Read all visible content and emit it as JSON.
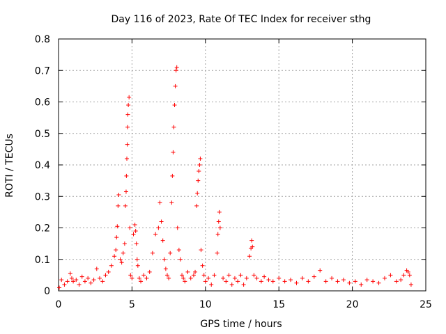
{
  "chart_data": {
    "type": "scatter",
    "title": "Day 116 of 2023, Rate Of TEC Index for receiver sthg",
    "xlabel": "GPS time / hours",
    "ylabel": "ROTI / TECUs",
    "xlim": [
      0,
      25
    ],
    "ylim": [
      0,
      0.8
    ],
    "xticks": [
      "0",
      "5",
      "10",
      "15",
      "20",
      "25"
    ],
    "yticks": [
      "0",
      "0.1",
      "0.2",
      "0.3",
      "0.4",
      "0.5",
      "0.6",
      "0.7",
      "0.8"
    ],
    "grid": true,
    "marker": "+",
    "color": "#ff0000",
    "series": [
      {
        "x": [
          0.05,
          0.2,
          0.4,
          0.6,
          0.8,
          0.9,
          1.0,
          1.2,
          1.4,
          1.6,
          1.8,
          2.0,
          2.2,
          2.4,
          2.6,
          2.8,
          3.0,
          3.2,
          3.4,
          3.6,
          3.8,
          3.9,
          3.95,
          4.0,
          4.05,
          4.1,
          4.2,
          4.3,
          4.4,
          4.5,
          4.55,
          4.6,
          4.62,
          4.65,
          4.68,
          4.7,
          4.72,
          4.75,
          4.8,
          4.85,
          4.9,
          5.0,
          5.1,
          5.2,
          5.25,
          5.3,
          5.35,
          5.4,
          5.5,
          5.6,
          5.8,
          6.0,
          6.2,
          6.4,
          6.6,
          6.8,
          6.9,
          7.0,
          7.1,
          7.2,
          7.3,
          7.4,
          7.5,
          7.6,
          7.7,
          7.75,
          7.8,
          7.85,
          7.9,
          7.95,
          8.0,
          8.05,
          8.1,
          8.2,
          8.3,
          8.4,
          8.5,
          8.6,
          8.8,
          9.0,
          9.2,
          9.3,
          9.4,
          9.45,
          9.5,
          9.55,
          9.6,
          9.65,
          9.7,
          9.8,
          9.9,
          10.0,
          10.2,
          10.4,
          10.6,
          10.8,
          10.85,
          10.9,
          10.95,
          11.0,
          11.2,
          11.4,
          11.6,
          11.8,
          12.0,
          12.2,
          12.4,
          12.6,
          12.8,
          13.0,
          13.1,
          13.15,
          13.2,
          13.3,
          13.5,
          13.8,
          14.0,
          14.3,
          14.6,
          15.0,
          15.4,
          15.8,
          16.2,
          16.6,
          17.0,
          17.4,
          17.8,
          18.2,
          18.6,
          19.0,
          19.4,
          19.8,
          20.2,
          20.6,
          21.0,
          21.4,
          21.8,
          22.2,
          22.6,
          23.0,
          23.3,
          23.5,
          23.7,
          23.8,
          23.9,
          24.0
        ],
        "y": [
          0.01,
          0.035,
          0.02,
          0.03,
          0.055,
          0.04,
          0.03,
          0.035,
          0.02,
          0.045,
          0.03,
          0.04,
          0.025,
          0.035,
          0.07,
          0.04,
          0.03,
          0.05,
          0.06,
          0.08,
          0.11,
          0.13,
          0.17,
          0.205,
          0.27,
          0.305,
          0.1,
          0.09,
          0.12,
          0.15,
          0.27,
          0.315,
          0.365,
          0.42,
          0.465,
          0.52,
          0.56,
          0.59,
          0.615,
          0.2,
          0.05,
          0.04,
          0.18,
          0.21,
          0.19,
          0.15,
          0.1,
          0.08,
          0.04,
          0.03,
          0.05,
          0.04,
          0.06,
          0.12,
          0.18,
          0.2,
          0.28,
          0.22,
          0.16,
          0.1,
          0.07,
          0.05,
          0.04,
          0.12,
          0.28,
          0.365,
          0.44,
          0.52,
          0.59,
          0.65,
          0.7,
          0.71,
          0.2,
          0.13,
          0.1,
          0.05,
          0.04,
          0.03,
          0.06,
          0.04,
          0.05,
          0.06,
          0.27,
          0.31,
          0.35,
          0.38,
          0.4,
          0.42,
          0.13,
          0.08,
          0.05,
          0.03,
          0.04,
          0.02,
          0.05,
          0.12,
          0.18,
          0.22,
          0.25,
          0.2,
          0.04,
          0.03,
          0.05,
          0.02,
          0.04,
          0.03,
          0.05,
          0.02,
          0.04,
          0.11,
          0.135,
          0.16,
          0.14,
          0.05,
          0.04,
          0.03,
          0.045,
          0.035,
          0.03,
          0.04,
          0.03,
          0.035,
          0.025,
          0.04,
          0.03,
          0.045,
          0.065,
          0.03,
          0.04,
          0.03,
          0.035,
          0.025,
          0.03,
          0.02,
          0.035,
          0.03,
          0.025,
          0.04,
          0.05,
          0.03,
          0.035,
          0.05,
          0.065,
          0.06,
          0.05,
          0.02
        ]
      }
    ]
  }
}
